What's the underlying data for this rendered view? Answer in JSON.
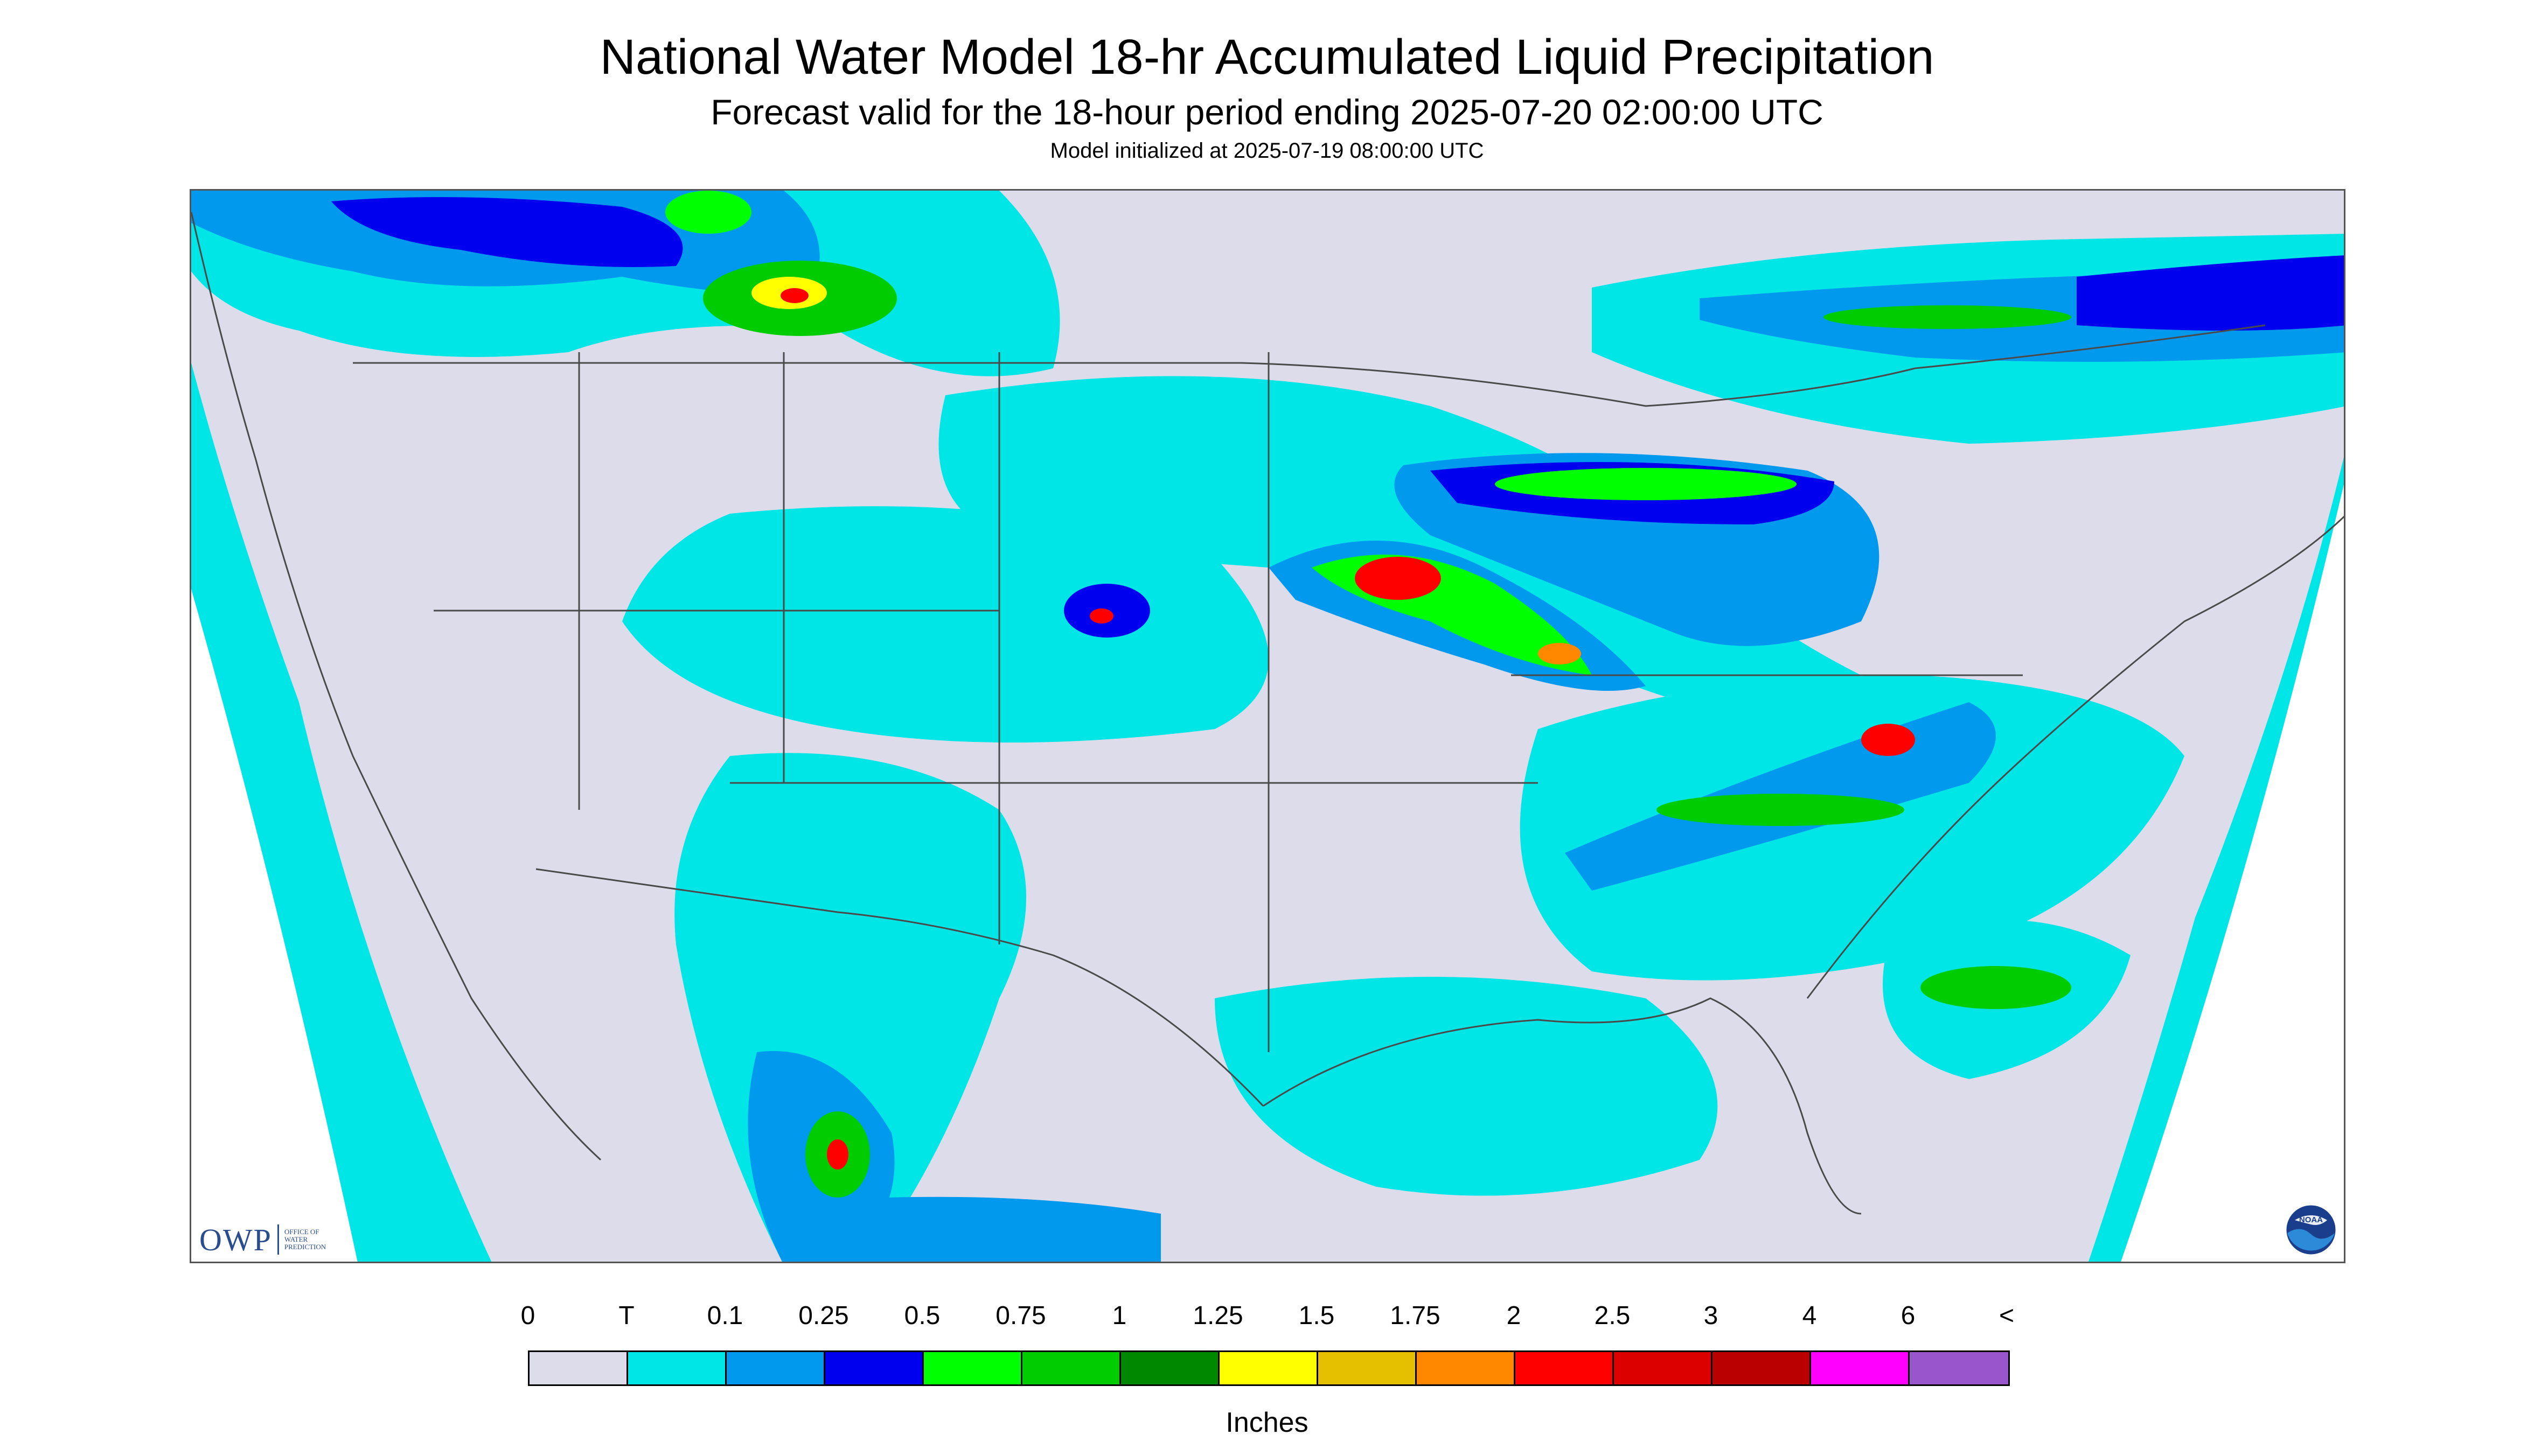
{
  "header": {
    "title": "National Water Model 18-hr Accumulated Liquid Precipitation",
    "subtitle": "Forecast valid for the 18-hour period ending 2025-07-20 02:00:00 UTC",
    "init": "Model initialized at 2025-07-19 08:00:00 UTC"
  },
  "logos": {
    "owp_abbrev": "OWP",
    "owp_line1": "OFFICE OF",
    "owp_line2": "WATER",
    "owp_line3": "PREDICTION",
    "noaa": "NOAA"
  },
  "colors": {
    "no_data_background": "#dcdcea",
    "light_rain": "#00e5e5",
    "boundary_lines": "#4a4a4a"
  },
  "legend": {
    "labels": [
      "0",
      "T",
      "0.1",
      "0.25",
      "0.5",
      "0.75",
      "1",
      "1.25",
      "1.5",
      "1.75",
      "2",
      "2.5",
      "3",
      "4",
      "6",
      "<"
    ],
    "colors": [
      "#dcdcea",
      "#00e5e5",
      "#0099ee",
      "#0000ee",
      "#00ff00",
      "#00cc00",
      "#008800",
      "#ffff00",
      "#e5c000",
      "#ff8800",
      "#ff0000",
      "#dd0000",
      "#bb0000",
      "#ff00ff",
      "#9955cc"
    ],
    "units": "Inches"
  }
}
